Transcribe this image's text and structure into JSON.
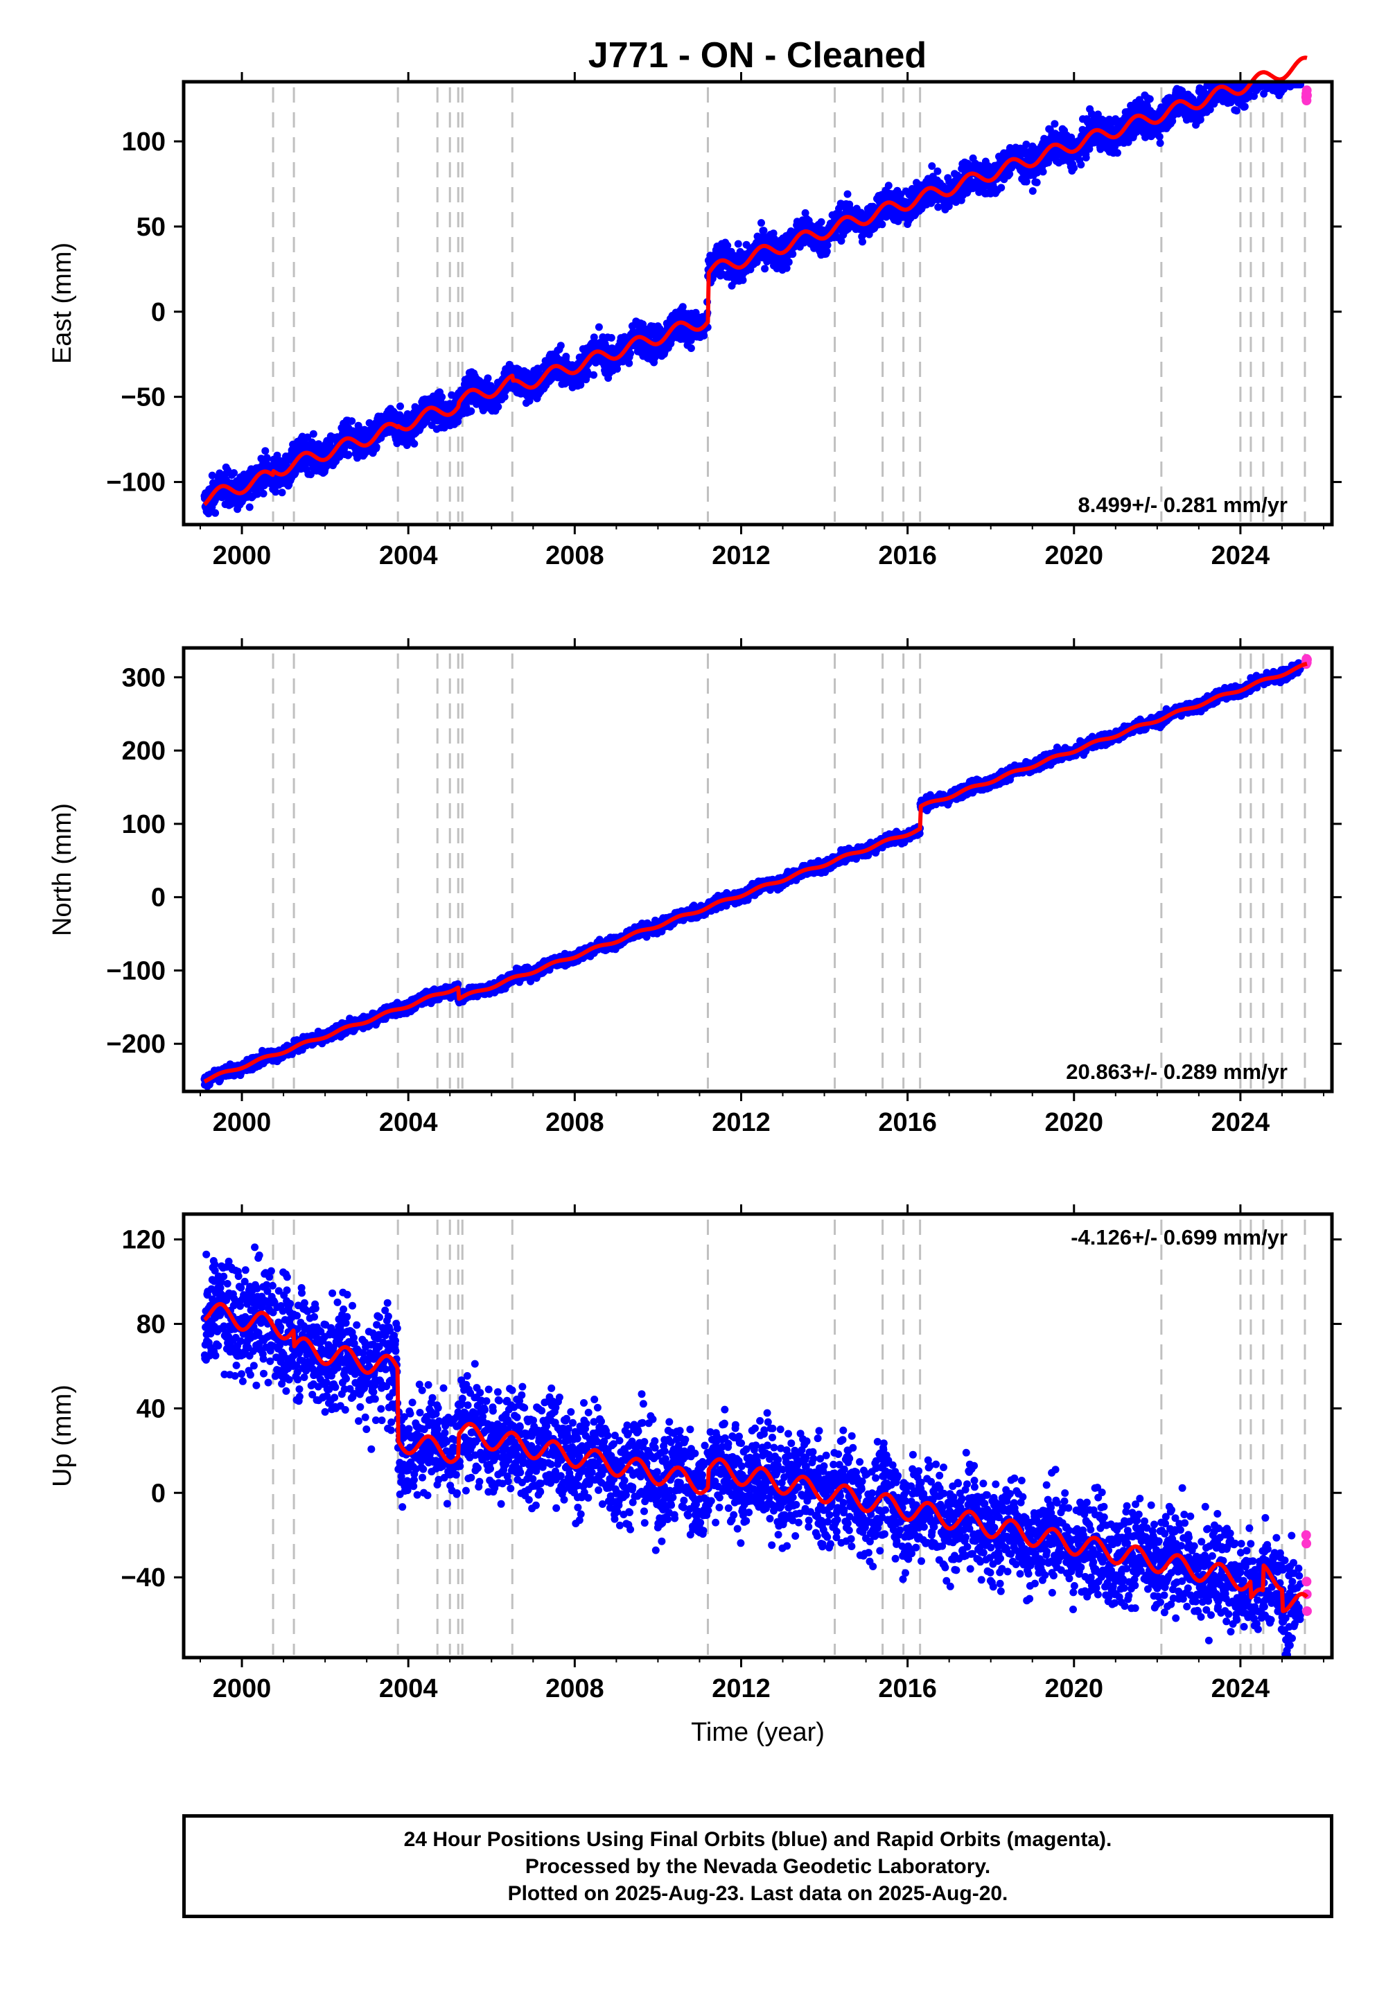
{
  "page": {
    "title": "J771  - ON - Cleaned"
  },
  "colors": {
    "final": "#0000ff",
    "rapid": "#ff33cc",
    "model": "#ff0000",
    "events": "#c0c0c0"
  },
  "events": [
    2000.75,
    2001.25,
    2003.75,
    2004.7,
    2005.0,
    2005.2,
    2005.3,
    2006.5,
    2011.2,
    2014.25,
    2015.4,
    2015.9,
    2016.3,
    2022.1,
    2024.0,
    2024.25,
    2024.55,
    2025.0,
    2025.55
  ],
  "chart_data": [
    {
      "type": "scatter",
      "component": "East",
      "ylabel": "East (mm)",
      "xlabel": "",
      "xlim": [
        1998.6,
        2026.2
      ],
      "ylim": [
        -125,
        135
      ],
      "xticks": [
        2000,
        2004,
        2008,
        2012,
        2016,
        2020,
        2024
      ],
      "yticks": [
        -100,
        -50,
        0,
        50,
        100
      ],
      "ytick_labels": [
        "−100",
        "−50",
        "0",
        "50",
        "100"
      ],
      "rate": "8.499+/- 0.281 mm/yr",
      "rate_position": "bottom-right",
      "start": 1999.1,
      "end": 2025.6,
      "model": {
        "intercept": -110,
        "slope": 8.499,
        "anchor": 1999.1,
        "seasonal_amplitude": 4,
        "offsets": [
          [
            2000.75,
            2.5
          ],
          [
            2003.75,
            1.0
          ],
          [
            2005.2,
            2.0
          ],
          [
            2006.5,
            -3.0
          ],
          [
            2011.2,
            28.0
          ],
          [
            2014.25,
            0.0
          ]
        ]
      },
      "scatter": 5.0,
      "rapid_values": [
        126,
        128,
        124,
        130,
        127
      ],
      "series": [
        {
          "name": "Final Orbits",
          "color": "#0000ff"
        },
        {
          "name": "Rapid Orbits",
          "color": "#ff33cc"
        }
      ]
    },
    {
      "type": "scatter",
      "component": "North",
      "ylabel": "North (mm)",
      "xlabel": "",
      "xlim": [
        1998.6,
        2026.2
      ],
      "ylim": [
        -265,
        340
      ],
      "xticks": [
        2000,
        2004,
        2008,
        2012,
        2016,
        2020,
        2024
      ],
      "yticks": [
        -200,
        -100,
        0,
        100,
        200,
        300
      ],
      "ytick_labels": [
        "−200",
        "−100",
        "0",
        "100",
        "200",
        "300"
      ],
      "rate": "20.863+/- 0.289 mm/yr",
      "rate_position": "bottom-right",
      "start": 1999.1,
      "end": 2025.6,
      "model": {
        "intercept": -250,
        "slope": 20.863,
        "anchor": 1999.1,
        "seasonal_amplitude": 2,
        "offsets": [
          [
            2005.2,
            -16.0
          ],
          [
            2016.3,
            30.0
          ]
        ]
      },
      "scatter": 4.0,
      "rapid_values": [
        318,
        322,
        325,
        320,
        324
      ],
      "series": [
        {
          "name": "Final Orbits",
          "color": "#0000ff"
        },
        {
          "name": "Rapid Orbits",
          "color": "#ff33cc"
        }
      ]
    },
    {
      "type": "scatter",
      "component": "Up",
      "ylabel": "Up (mm)",
      "xlabel": "Time (year)",
      "xlim": [
        1998.6,
        2026.2
      ],
      "ylim": [
        -78,
        132
      ],
      "xticks": [
        2000,
        2004,
        2008,
        2012,
        2016,
        2020,
        2024
      ],
      "yticks": [
        -40,
        0,
        40,
        80,
        120
      ],
      "ytick_labels": [
        "−40",
        "0",
        "40",
        "80",
        "120"
      ],
      "rate": "-4.126+/- 0.699 mm/yr",
      "rate_position": "top-right",
      "start": 1999.1,
      "end": 2025.6,
      "model": {
        "intercept": 86,
        "slope": -4.126,
        "anchor": 1999.1,
        "seasonal_amplitude": 5,
        "offsets": [
          [
            2001.25,
            -8.0
          ],
          [
            2003.75,
            -34.0
          ],
          [
            2005.2,
            10.0
          ],
          [
            2011.2,
            8.0
          ],
          [
            2022.1,
            0.0
          ],
          [
            2024.25,
            -8.0
          ],
          [
            2024.55,
            12.0
          ],
          [
            2025.0,
            -10.0
          ]
        ]
      },
      "scatter": 12.0,
      "rapid_values": [
        -20,
        -24,
        -42,
        -48,
        -56
      ],
      "series": [
        {
          "name": "Final Orbits",
          "color": "#0000ff"
        },
        {
          "name": "Rapid Orbits",
          "color": "#ff33cc"
        }
      ]
    }
  ],
  "footer": {
    "line1": "24 Hour Positions Using Final Orbits (blue) and Rapid Orbits (magenta).",
    "line2": "Processed by the Nevada Geodetic Laboratory.",
    "line3": "Plotted on 2025-Aug-23. Last data on 2025-Aug-20."
  }
}
